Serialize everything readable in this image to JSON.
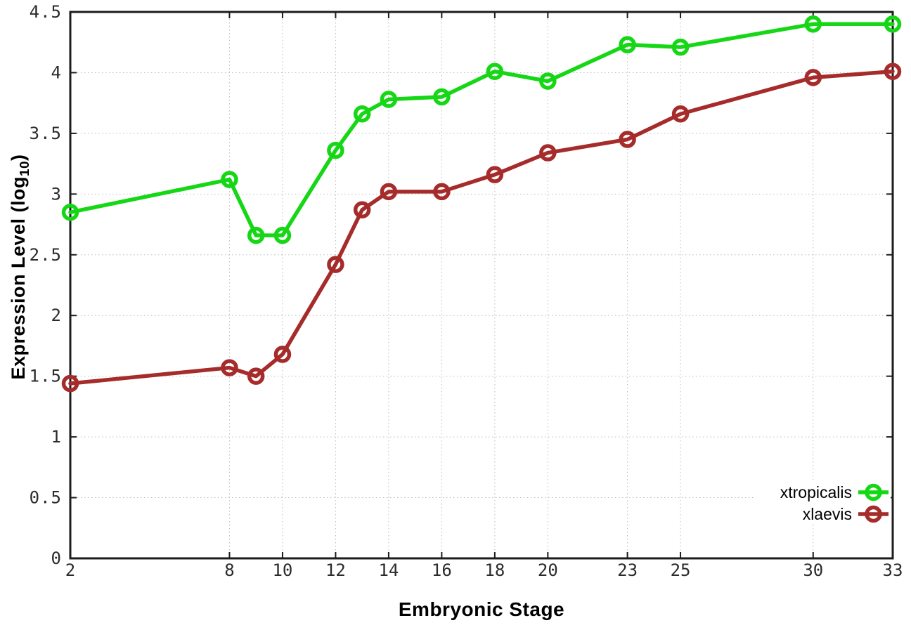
{
  "chart_data": {
    "type": "line",
    "title": "",
    "xlabel": "Embryonic Stage",
    "ylabel": {
      "prefix": "Expression Level (log",
      "sub": "10",
      "suffix": ")"
    },
    "x_range": [
      2,
      33
    ],
    "y_range": [
      0,
      4.5
    ],
    "grid": true,
    "x_ticks": [
      2,
      8,
      10,
      12,
      14,
      16,
      18,
      20,
      23,
      25,
      30,
      33
    ],
    "x_tick_labels": [
      "2",
      "8",
      "10",
      "12",
      "14",
      "16",
      "18",
      "20",
      "23",
      "25",
      "30",
      "33"
    ],
    "y_ticks": [
      0,
      0.5,
      1,
      1.5,
      2,
      2.5,
      3,
      3.5,
      4,
      4.5
    ],
    "y_tick_labels": [
      "0",
      "0.5",
      "1",
      "1.5",
      "2",
      "2.5",
      "3",
      "3.5",
      "4",
      "4.5"
    ],
    "x": [
      2,
      8,
      9,
      10,
      12,
      13,
      14,
      16,
      18,
      20,
      23,
      25,
      30,
      33
    ],
    "series": [
      {
        "name": "xtropicalis",
        "color": "#15d715",
        "values": [
          2.85,
          3.12,
          2.66,
          2.66,
          3.36,
          3.66,
          3.78,
          3.8,
          4.01,
          3.93,
          4.23,
          4.21,
          4.4,
          4.4
        ]
      },
      {
        "name": "xlaevis",
        "color": "#a62b2b",
        "values": [
          1.44,
          1.57,
          1.5,
          1.68,
          2.42,
          2.87,
          3.02,
          3.02,
          3.16,
          3.34,
          3.45,
          3.66,
          3.96,
          4.01
        ]
      }
    ],
    "legend": {
      "position": "bottom-right",
      "entries": [
        "xtropicalis",
        "xlaevis"
      ]
    },
    "colors": {
      "background": "#ffffff",
      "axis": "#1c1c1c",
      "grid": "#bcbcbc",
      "tick_label": "#2b2b2b",
      "legend_text": "#000000"
    },
    "marker": "open-circle"
  }
}
